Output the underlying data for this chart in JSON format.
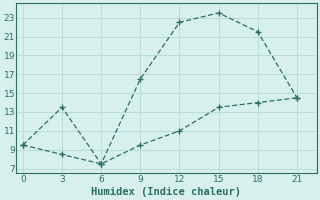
{
  "line1_x": [
    0,
    3,
    6,
    9,
    12,
    15,
    18,
    21
  ],
  "line1_y": [
    9.5,
    13.5,
    7.5,
    16.5,
    22.5,
    23.5,
    21.5,
    14.5
  ],
  "line2_x": [
    0,
    3,
    6,
    9,
    12,
    15,
    18,
    21
  ],
  "line2_y": [
    9.5,
    8.5,
    7.5,
    9.5,
    11.0,
    13.5,
    14.0,
    14.5
  ],
  "line_color": "#2a6e64",
  "bg_color": "#d8f0ec",
  "grid_color": "#b8dcd6",
  "xlabel": "Humidex (Indice chaleur)",
  "xlabel_fontsize": 7.5,
  "xticks": [
    0,
    3,
    6,
    9,
    12,
    15,
    18,
    21
  ],
  "yticks": [
    7,
    9,
    11,
    13,
    15,
    17,
    19,
    21,
    23
  ],
  "ylim": [
    6.5,
    24.5
  ],
  "xlim": [
    -0.5,
    22.5
  ]
}
